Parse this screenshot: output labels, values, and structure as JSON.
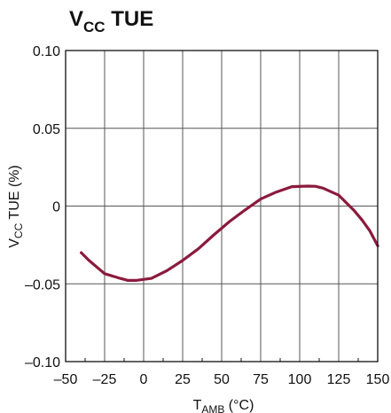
{
  "chart_data": {
    "type": "line",
    "title_main": "V",
    "title_sub": "CC",
    "title_tail": " TUE",
    "ylabel_main": "V",
    "ylabel_sub": "CC",
    "ylabel_tail": " TUE (%)",
    "xlabel_main": "T",
    "xlabel_sub": "AMB",
    "xlabel_tail": " (°C)",
    "xlim": [
      -50,
      150
    ],
    "ylim": [
      -0.1,
      0.1
    ],
    "x_ticks": [
      -50,
      -25,
      0,
      25,
      50,
      75,
      100,
      125,
      150
    ],
    "x_tick_labels": [
      "–50",
      "–25",
      "0",
      "25",
      "50",
      "75",
      "100",
      "125",
      "150"
    ],
    "y_ticks": [
      0.1,
      0.05,
      0,
      -0.05,
      -0.1
    ],
    "y_tick_labels": [
      "0.10",
      "0.05",
      "0",
      "–0.05",
      "–0.10"
    ],
    "x_minor_ticks": [
      -37.5,
      -12.5,
      12.5,
      37.5,
      62.5,
      87.5,
      112.5,
      137.5
    ],
    "grid": true,
    "series": [
      {
        "color": "#8b1a3e",
        "x": [
          -40,
          -35,
          -25,
          -15,
          -10,
          -5,
          5,
          15,
          25,
          35,
          45,
          55,
          65,
          75,
          85,
          95,
          105,
          110,
          115,
          125,
          135,
          140,
          145,
          150
        ],
        "y": [
          -0.03,
          -0.035,
          -0.0435,
          -0.0465,
          -0.0478,
          -0.0478,
          -0.0465,
          -0.0415,
          -0.035,
          -0.0275,
          -0.0185,
          -0.01,
          -0.0025,
          0.0045,
          0.009,
          0.0125,
          0.0128,
          0.0127,
          0.0115,
          0.007,
          -0.003,
          -0.009,
          -0.016,
          -0.0255
        ]
      }
    ]
  }
}
